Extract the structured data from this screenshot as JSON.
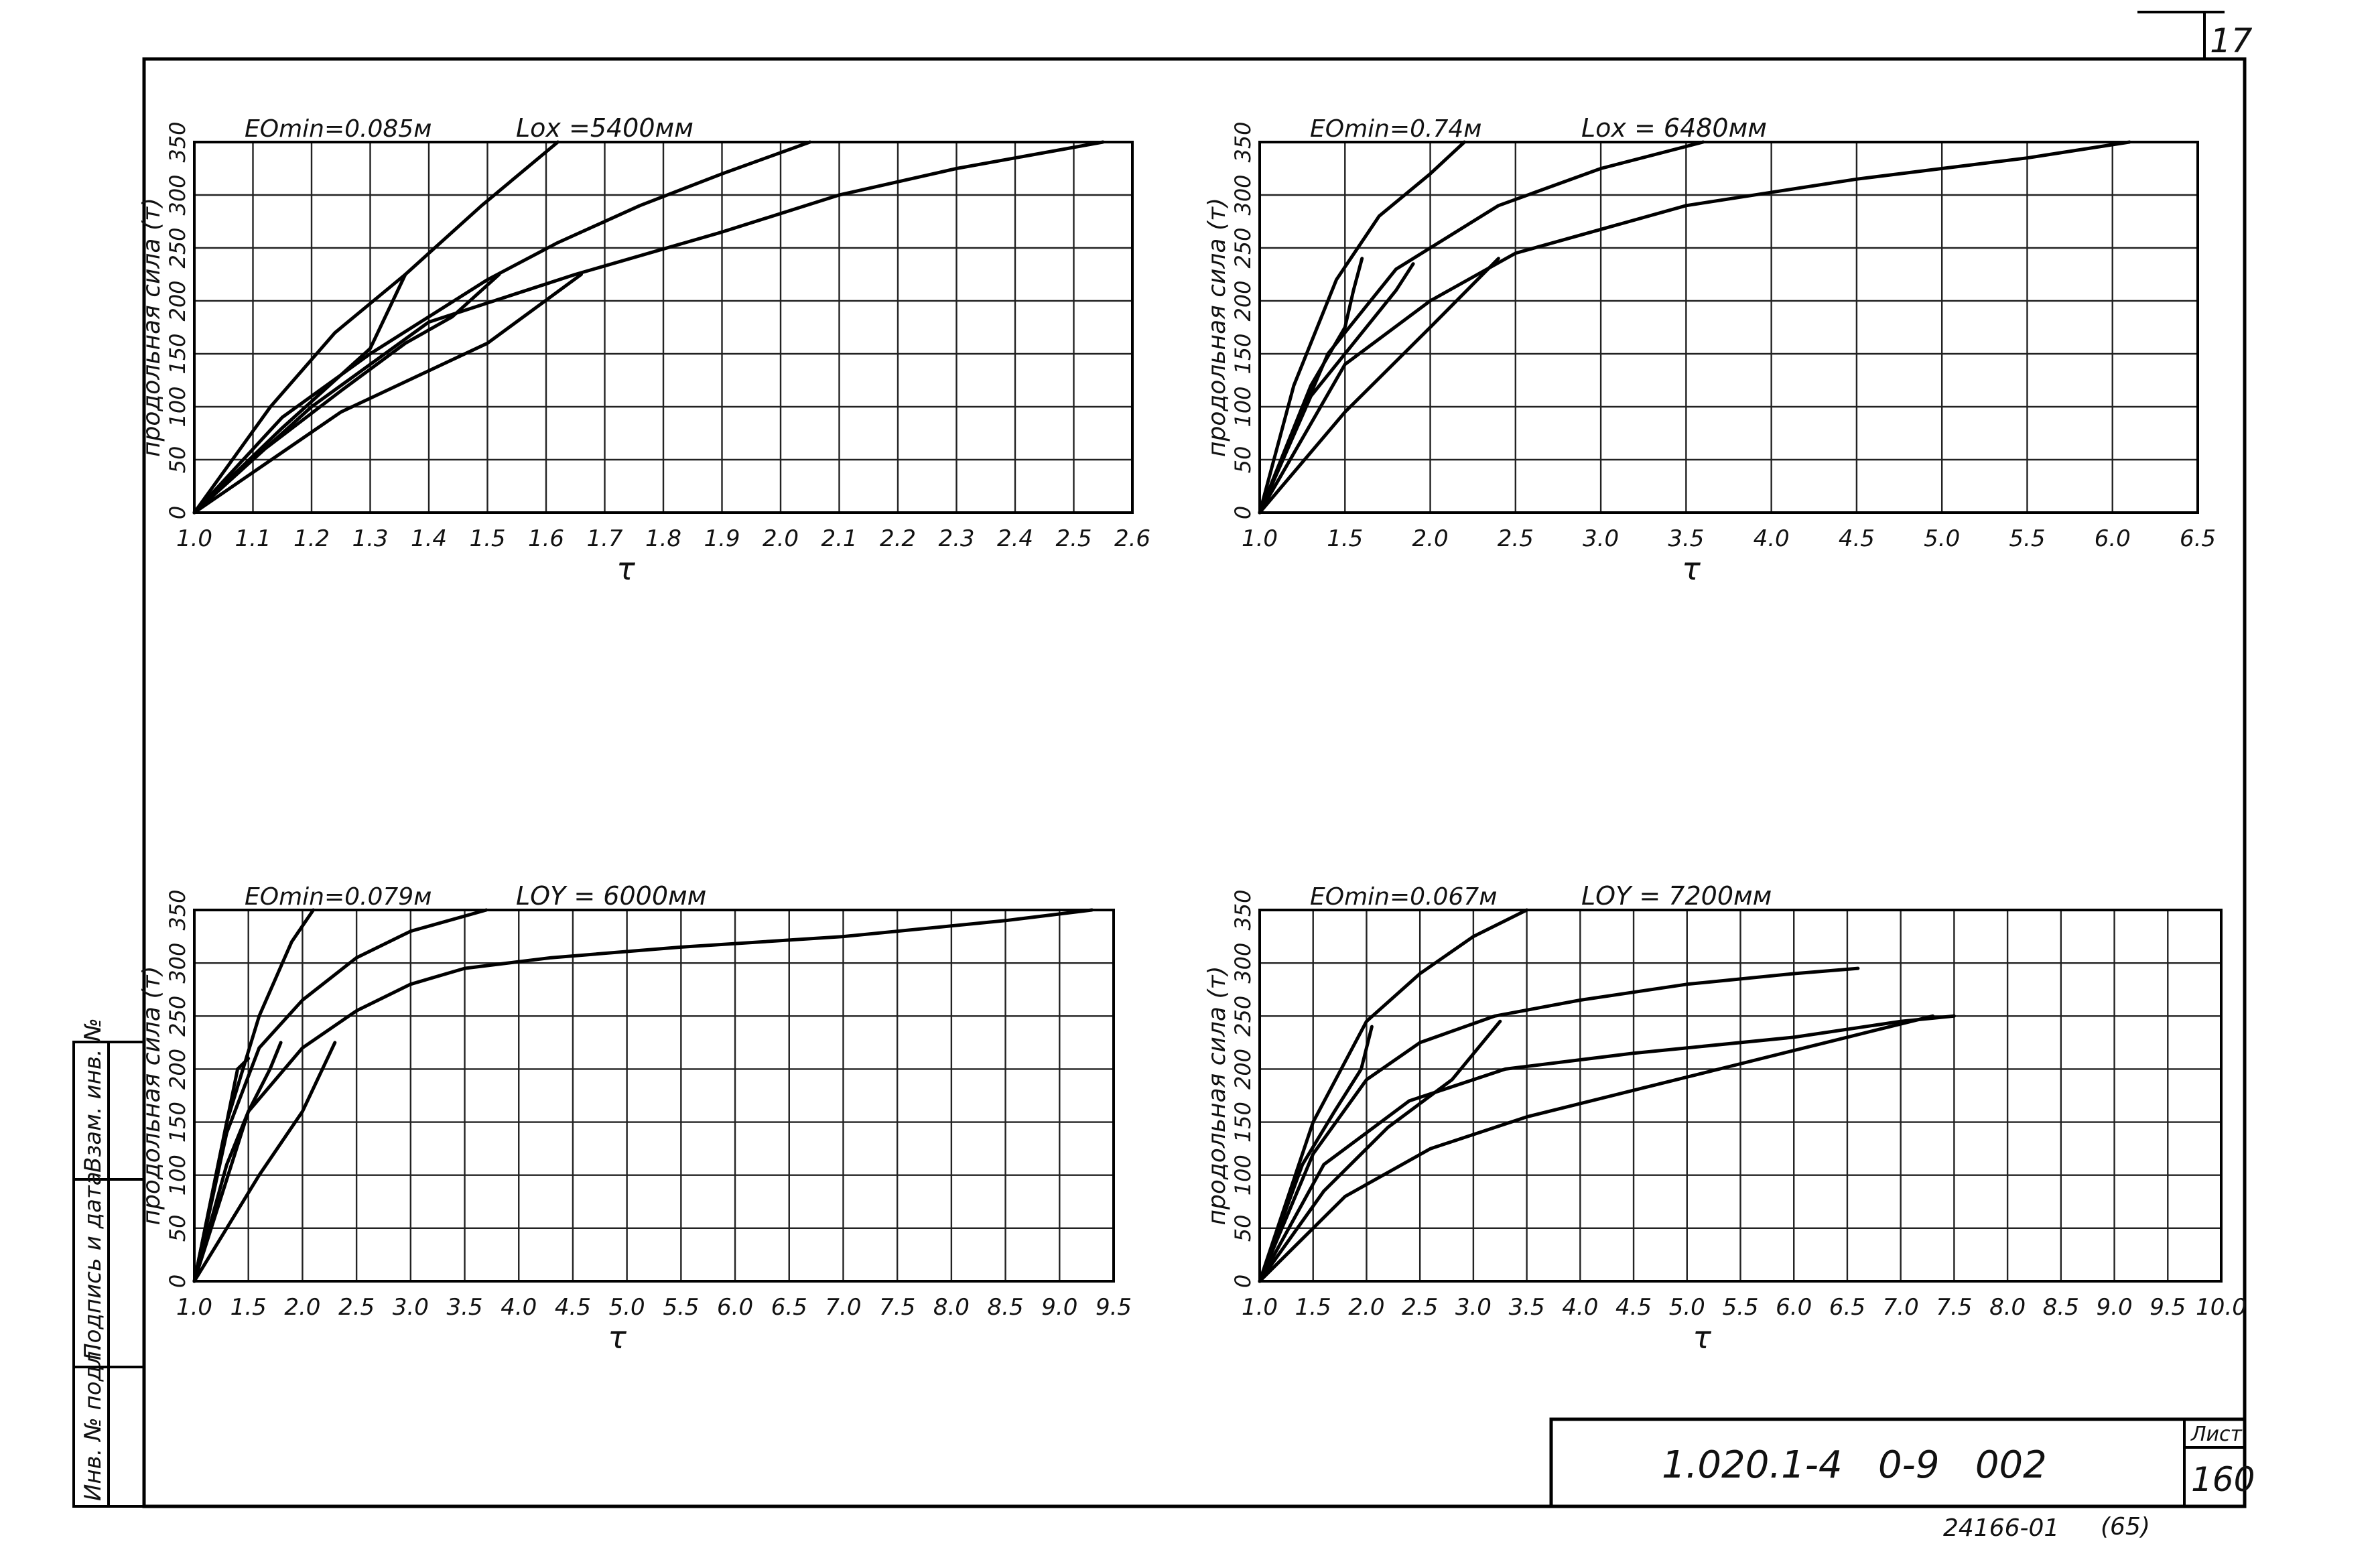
{
  "sheet": {
    "code": "1.020.1-4   0-9   002",
    "sheet_label": "Лист",
    "sheet_number": "160",
    "corner_mark": "17",
    "bottom_number": "24166-01",
    "bottom_sub": "(65)",
    "stamp_labels": [
      "Инв. № подл.",
      "Подпись и дата",
      "Взам. инв. №"
    ]
  },
  "chart_data": [
    {
      "type": "line",
      "ylabel": "продольная сила (т)",
      "xlabel": "τ",
      "emin_label": "EОmin=0.085м",
      "length_label": "Lox =5400мм",
      "xlim": [
        1.0,
        2.6
      ],
      "ylim": [
        0,
        350
      ],
      "xticks": [
        "1.0",
        "1.1",
        "1.2",
        "1.3",
        "1.4",
        "1.5",
        "1.6",
        "1.7",
        "1.8",
        "1.9",
        "2.0",
        "2.1",
        "2.2",
        "2.3",
        "2.4",
        "2.5",
        "2.6"
      ],
      "yticks": [
        "0",
        "50",
        "100",
        "150",
        "200",
        "250",
        "300",
        "350"
      ],
      "grid": true,
      "series": [
        {
          "x": [
            1.0,
            1.13,
            1.24,
            1.36,
            1.49,
            1.62
          ],
          "y": [
            0,
            100,
            170,
            225,
            290,
            350
          ]
        },
        {
          "x": [
            1.0,
            1.15,
            1.3,
            1.4,
            1.5,
            1.62,
            1.76,
            1.9,
            2.05
          ],
          "y": [
            0,
            90,
            150,
            185,
            220,
            255,
            290,
            320,
            350
          ]
        },
        {
          "x": [
            1.0,
            1.2,
            1.4,
            1.65,
            1.9,
            2.1,
            2.3,
            2.55
          ],
          "y": [
            0,
            100,
            180,
            225,
            265,
            300,
            325,
            350
          ]
        },
        {
          "x": [
            1.0,
            1.12,
            1.25,
            1.36,
            1.44,
            1.52
          ],
          "y": [
            0,
            60,
            115,
            160,
            185,
            225
          ]
        },
        {
          "x": [
            1.0,
            1.25,
            1.5,
            1.66
          ],
          "y": [
            0,
            95,
            160,
            225
          ]
        },
        {
          "x": [
            1.0,
            1.15,
            1.3,
            1.36
          ],
          "y": [
            0,
            80,
            155,
            225
          ]
        }
      ]
    },
    {
      "type": "line",
      "ylabel": "продольная сила (т)",
      "xlabel": "τ",
      "emin_label": "EОmin=0.74м",
      "length_label": "Lox = 6480мм",
      "xlim": [
        1.0,
        6.5
      ],
      "ylim": [
        0,
        350
      ],
      "xticks": [
        "1.0",
        "1.5",
        "2.0",
        "2.5",
        "3.0",
        "3.5",
        "4.0",
        "4.5",
        "5.0",
        "5.5",
        "6.0",
        "6.5"
      ],
      "yticks": [
        "0",
        "50",
        "100",
        "150",
        "200",
        "250",
        "300",
        "350"
      ],
      "grid": true,
      "series": [
        {
          "x": [
            1.0,
            1.2,
            1.45,
            1.7,
            2.0,
            2.2
          ],
          "y": [
            0,
            120,
            220,
            280,
            320,
            350
          ]
        },
        {
          "x": [
            1.0,
            1.4,
            1.8,
            2.4,
            3.0,
            3.6
          ],
          "y": [
            0,
            150,
            230,
            290,
            325,
            350
          ]
        },
        {
          "x": [
            1.0,
            1.5,
            2.0,
            2.5,
            3.5,
            4.5,
            5.5,
            6.1
          ],
          "y": [
            0,
            140,
            200,
            245,
            290,
            315,
            335,
            350
          ]
        },
        {
          "x": [
            1.0,
            1.3,
            1.55,
            1.7,
            1.8,
            1.9
          ],
          "y": [
            0,
            110,
            160,
            190,
            210,
            235
          ]
        },
        {
          "x": [
            1.0,
            1.5,
            2.0,
            2.4
          ],
          "y": [
            0,
            95,
            175,
            240
          ]
        },
        {
          "x": [
            1.0,
            1.3,
            1.5,
            1.55,
            1.6
          ],
          "y": [
            0,
            120,
            175,
            210,
            240
          ]
        }
      ]
    },
    {
      "type": "line",
      "ylabel": "продольная сила (т)",
      "xlabel": "τ",
      "emin_label": "EОmin=0.079м",
      "length_label": "LОY = 6000мм",
      "xlim": [
        1.0,
        9.5
      ],
      "ylim": [
        0,
        350
      ],
      "xticks": [
        "1.0",
        "1.5",
        "2.0",
        "2.5",
        "3.0",
        "3.5",
        "4.0",
        "4.5",
        "5.0",
        "5.5",
        "6.0",
        "6.5",
        "7.0",
        "7.5",
        "8.0",
        "8.5",
        "9.0",
        "9.5"
      ],
      "yticks": [
        "0",
        "50",
        "100",
        "150",
        "200",
        "250",
        "300",
        "350"
      ],
      "grid": true,
      "series": [
        {
          "x": [
            1.0,
            1.3,
            1.6,
            1.9,
            2.1
          ],
          "y": [
            0,
            150,
            250,
            320,
            350
          ]
        },
        {
          "x": [
            1.0,
            1.3,
            1.6,
            2.0,
            2.5,
            3.0,
            3.7
          ],
          "y": [
            0,
            140,
            220,
            265,
            305,
            330,
            350
          ]
        },
        {
          "x": [
            1.0,
            1.5,
            2.0,
            2.5,
            3.0,
            3.5,
            4.3,
            5.5,
            7.0,
            8.5,
            9.3
          ],
          "y": [
            0,
            160,
            220,
            255,
            280,
            295,
            305,
            315,
            325,
            340,
            350
          ]
        },
        {
          "x": [
            1.0,
            1.3,
            1.5,
            1.7,
            1.8
          ],
          "y": [
            0,
            110,
            160,
            200,
            225
          ]
        },
        {
          "x": [
            1.0,
            1.6,
            2.0,
            2.3
          ],
          "y": [
            0,
            100,
            160,
            225
          ]
        },
        {
          "x": [
            1.0,
            1.2,
            1.4,
            1.5
          ],
          "y": [
            0,
            100,
            200,
            210
          ]
        }
      ]
    },
    {
      "type": "line",
      "ylabel": "продольная сила (т)",
      "xlabel": "τ",
      "emin_label": "EОmin=0.067м",
      "length_label": "LОY = 7200мм",
      "xlim": [
        1.0,
        10.0
      ],
      "ylim": [
        0,
        350
      ],
      "xticks": [
        "1.0",
        "1.5",
        "2.0",
        "2.5",
        "3.0",
        "3.5",
        "4.0",
        "4.5",
        "5.0",
        "5.5",
        "6.0",
        "6.5",
        "7.0",
        "7.5",
        "8.0",
        "8.5",
        "9.0",
        "9.5",
        "10.0"
      ],
      "yticks": [
        "0",
        "50",
        "100",
        "150",
        "200",
        "250",
        "300",
        "350"
      ],
      "grid": true,
      "series": [
        {
          "x": [
            1.0,
            1.5,
            2.0,
            2.5,
            3.0,
            3.5
          ],
          "y": [
            0,
            150,
            245,
            290,
            325,
            350
          ]
        },
        {
          "x": [
            1.0,
            1.5,
            2.0,
            2.5,
            3.2,
            4.0,
            5.0,
            6.0,
            6.6
          ],
          "y": [
            0,
            120,
            190,
            225,
            250,
            265,
            280,
            290,
            295
          ]
        },
        {
          "x": [
            1.0,
            1.6,
            2.4,
            3.3,
            4.5,
            6.0,
            7.0,
            7.5
          ],
          "y": [
            0,
            110,
            170,
            200,
            215,
            230,
            245,
            250
          ]
        },
        {
          "x": [
            1.0,
            1.8,
            2.6,
            3.5,
            4.5,
            5.5,
            6.5,
            7.3
          ],
          "y": [
            0,
            80,
            125,
            155,
            180,
            205,
            230,
            250
          ]
        },
        {
          "x": [
            1.0,
            1.6,
            2.2,
            2.8,
            3.25
          ],
          "y": [
            0,
            85,
            145,
            190,
            245
          ]
        },
        {
          "x": [
            1.0,
            1.4,
            1.7,
            1.95,
            2.05
          ],
          "y": [
            0,
            110,
            160,
            200,
            240
          ]
        }
      ]
    }
  ]
}
